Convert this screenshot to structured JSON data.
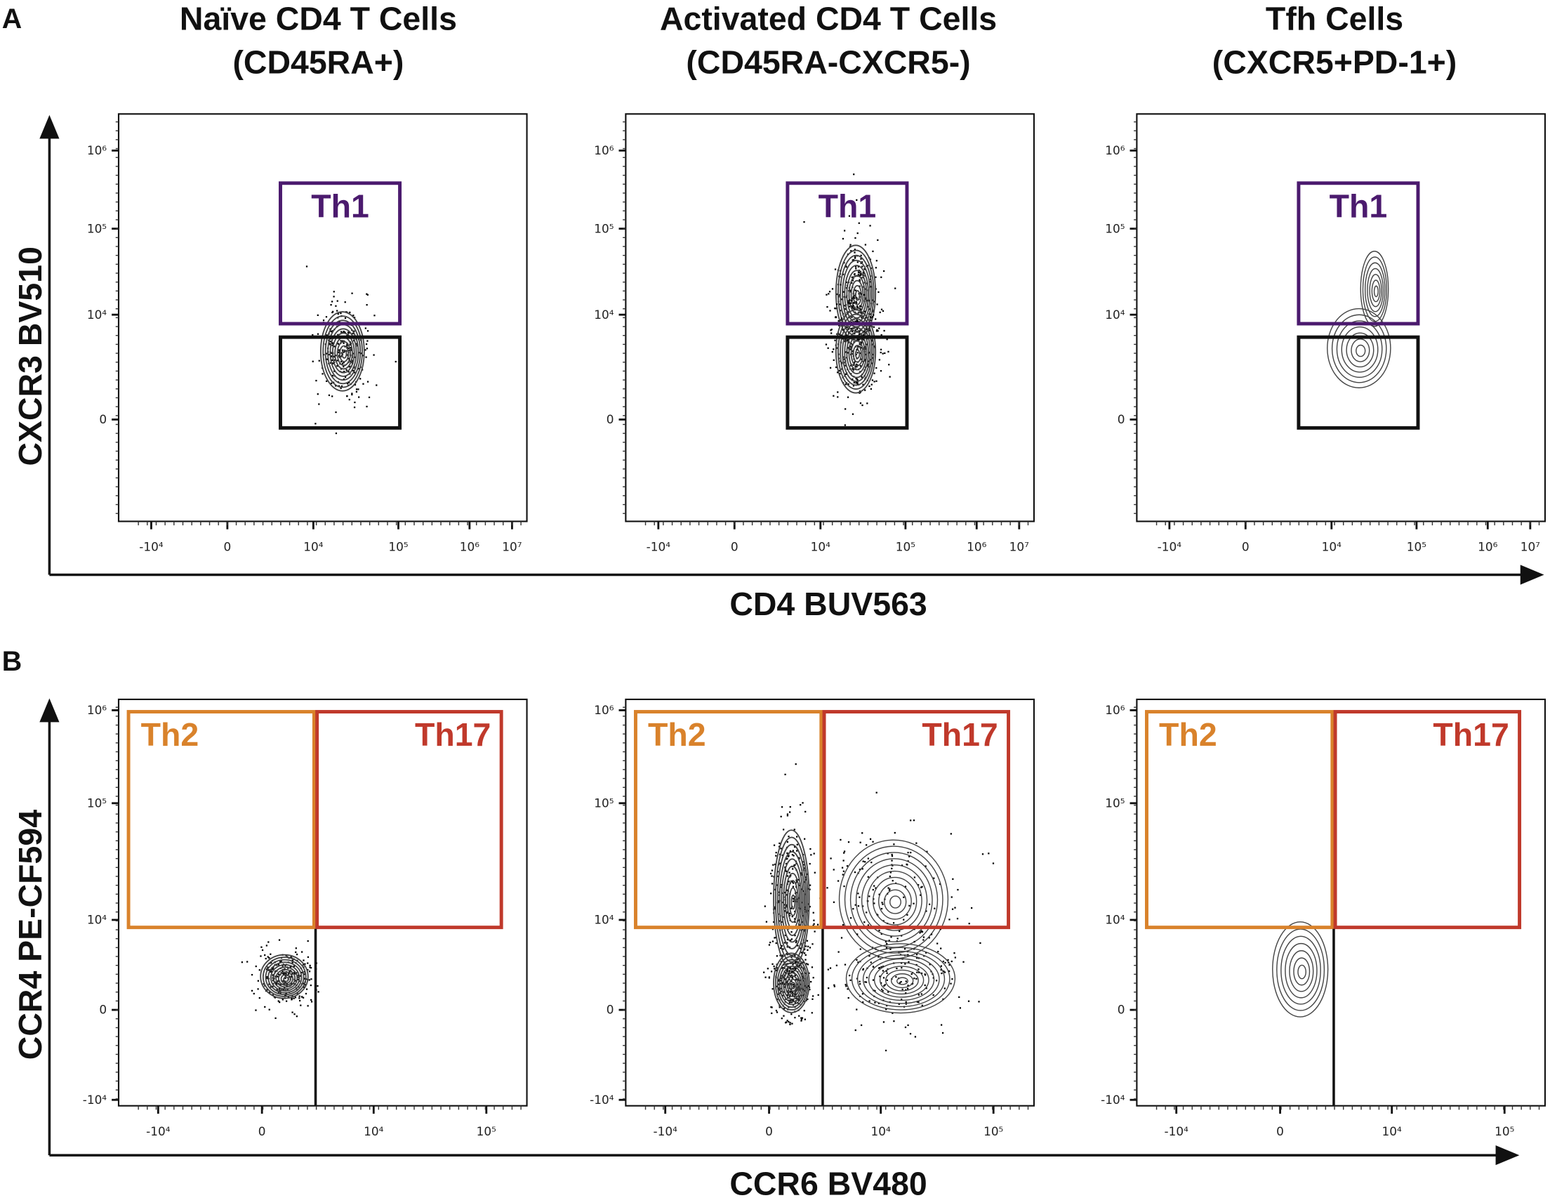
{
  "panel_letters": [
    "A",
    "B"
  ],
  "chart_data": [
    {
      "type": "contour",
      "row": "A",
      "xlabel": "CD4 BUV563",
      "ylabel": "CXCR3 BV510",
      "x_ticks": [
        "-10⁴",
        "0",
        "10⁴",
        "10⁵",
        "10⁶",
        "10⁷"
      ],
      "y_ticks": [
        "10⁶",
        "10⁵",
        "10⁴",
        "0"
      ],
      "x_scale": "biexponential",
      "y_scale": "biexponential",
      "panels": [
        {
          "title_lines": [
            "Naïve CD4 T Cells",
            "(CD45RA+)"
          ],
          "gates": [
            {
              "label": "Th1",
              "color": "#4b1a6e",
              "x": [
                6000,
                110000
              ],
              "y": [
                9000,
                400000
              ]
            },
            {
              "label": "",
              "color": "#111111",
              "x": [
                6000,
                110000
              ],
              "y": [
                -1000,
                8000
              ]
            }
          ],
          "populations": [
            {
              "x": 22000,
              "y": 6500,
              "density": "high"
            }
          ]
        },
        {
          "title_lines": [
            "Activated CD4 T Cells",
            "(CD45RA-CXCR5-)"
          ],
          "gates": [
            {
              "label": "Th1",
              "color": "#4b1a6e",
              "x": [
                6000,
                110000
              ],
              "y": [
                9000,
                400000
              ]
            },
            {
              "label": "",
              "color": "#111111",
              "x": [
                6000,
                110000
              ],
              "y": [
                -1000,
                8000
              ]
            }
          ],
          "populations": [
            {
              "x": 26000,
              "y": 18000,
              "density": "high"
            },
            {
              "x": 26000,
              "y": 6500,
              "density": "high"
            }
          ]
        },
        {
          "title_lines": [
            "Tfh Cells",
            "(CXCR5+PD-1+)"
          ],
          "gates": [
            {
              "label": "Th1",
              "color": "#4b1a6e",
              "x": [
                6000,
                110000
              ],
              "y": [
                9000,
                400000
              ]
            },
            {
              "label": "",
              "color": "#111111",
              "x": [
                6000,
                110000
              ],
              "y": [
                -1000,
                8000
              ]
            }
          ],
          "populations": [
            {
              "x": 21000,
              "y": 6800,
              "density": "low"
            },
            {
              "x": 32000,
              "y": 20000,
              "density": "low"
            }
          ]
        }
      ]
    },
    {
      "type": "contour",
      "row": "B",
      "xlabel": "CCR6 BV480",
      "ylabel": "CCR4 PE-CF594",
      "x_ticks": [
        "-10⁴",
        "0",
        "10⁴",
        "10⁵"
      ],
      "y_ticks": [
        "10⁶",
        "10⁵",
        "10⁴",
        "0",
        "-10⁴"
      ],
      "x_scale": "biexponential",
      "y_scale": "biexponential",
      "panels": [
        {
          "gates": [
            {
              "label": "Th2",
              "color": "#d9822b",
              "x": [
                -13000,
                4800
              ],
              "y": [
                9000,
                1000000
              ]
            },
            {
              "label": "Th17",
              "color": "#c0392b",
              "x": [
                4800,
                140000
              ],
              "y": [
                9000,
                1000000
              ]
            }
          ],
          "quadrant_x": 4800,
          "populations": [
            {
              "x": 2000,
              "y": 3700,
              "density": "high"
            }
          ]
        },
        {
          "gates": [
            {
              "label": "Th2",
              "color": "#d9822b",
              "x": [
                -13000,
                4800
              ],
              "y": [
                9000,
                1000000
              ]
            },
            {
              "label": "Th17",
              "color": "#c0392b",
              "x": [
                4800,
                140000
              ],
              "y": [
                9000,
                1000000
              ]
            }
          ],
          "quadrant_x": 4800,
          "populations": [
            {
              "x": 2000,
              "y": 15000,
              "density": "high"
            },
            {
              "x": 2000,
              "y": 3000,
              "density": "high"
            },
            {
              "x": 13000,
              "y": 15000,
              "density": "medium"
            },
            {
              "x": 15000,
              "y": 3500,
              "density": "medium"
            }
          ]
        },
        {
          "gates": [
            {
              "label": "Th2",
              "color": "#d9822b",
              "x": [
                -13000,
                4800
              ],
              "y": [
                9000,
                1000000
              ]
            },
            {
              "label": "Th17",
              "color": "#c0392b",
              "x": [
                4800,
                140000
              ],
              "y": [
                9000,
                1000000
              ]
            }
          ],
          "quadrant_x": 4800,
          "populations": [
            {
              "x": 1800,
              "y": 4500,
              "density": "low"
            }
          ]
        }
      ]
    }
  ]
}
